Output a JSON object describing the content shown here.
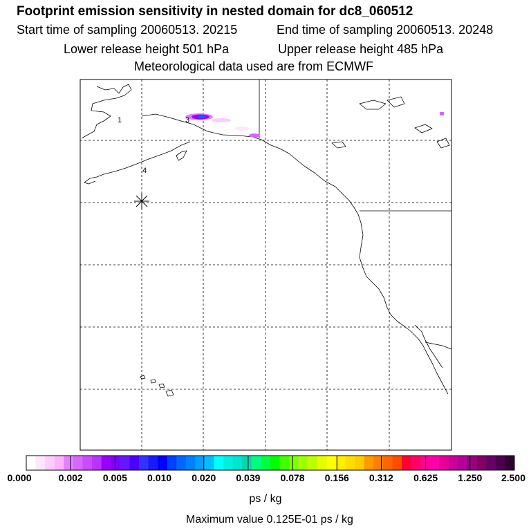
{
  "header": {
    "title": "Footprint emission sensitivity in nested domain for dc8_060512",
    "start_label": "Start time of sampling 20060513. 20215",
    "end_label": "End time of sampling 20060513. 20248",
    "lower_label": "Lower release height  501 hPa",
    "upper_label": "Upper release height  485 hPa",
    "met_label": "Meteorological data used are from ECMWF"
  },
  "map": {
    "point_labels": [
      "1",
      "3",
      "4"
    ],
    "release_marker": "asterisk-icon"
  },
  "legend": {
    "ticks": [
      "0.000",
      "0.002",
      "0.005",
      "0.010",
      "0.020",
      "0.039",
      "0.078",
      "0.156",
      "0.312",
      "0.625",
      "1.250",
      "2.500"
    ],
    "unit": "ps / kg",
    "max_value": "Maximum value  0.125E-01 ps / kg",
    "colors": [
      "#ffffff",
      "#ffe6ff",
      "#ffccff",
      "#ffb3ff",
      "#e680ff",
      "#d966ff",
      "#c94dff",
      "#b833ff",
      "#9900ff",
      "#8000ff",
      "#6619ff",
      "#4d00ff",
      "#3333ff",
      "#1a1aff",
      "#0000ff",
      "#0040ff",
      "#0066ff",
      "#0080ff",
      "#00a0ff",
      "#00c0ff",
      "#00ffff",
      "#00f0e0",
      "#00e6cc",
      "#00d9b3",
      "#00ff80",
      "#00ff40",
      "#00ff00",
      "#40ff00",
      "#80ff00",
      "#a0ff00",
      "#c0ff00",
      "#e0ff00",
      "#ffff00",
      "#ffee00",
      "#ffdd00",
      "#ffcc00",
      "#ff9900",
      "#ff8000",
      "#ff6600",
      "#ff4d00",
      "#ff0033",
      "#ff0066",
      "#ff0099",
      "#ff00aa",
      "#e6009a",
      "#cc0099",
      "#b30099",
      "#990080",
      "#800066",
      "#660066",
      "#4d004d",
      "#330033"
    ]
  }
}
